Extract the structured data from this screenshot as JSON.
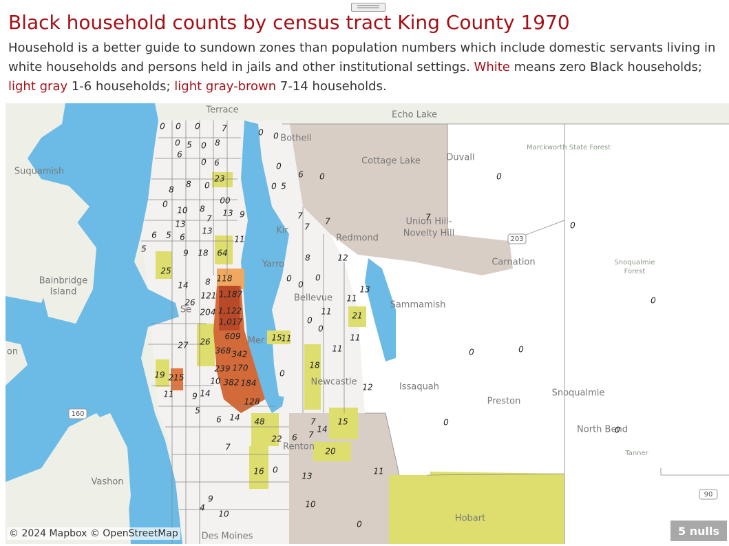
{
  "header": {
    "title": "Black household counts by census tract King County 1970",
    "description": [
      " Household is a better guide to sundown zones than population numbers which include domestic servants living in white households and persons held in jails and other institutional settings. ",
      "White",
      " means zero Black households; ",
      "light gray",
      " 1-6 households; ",
      "light gray-brown",
      " 7-14 households."
    ]
  },
  "map": {
    "place_labels": [
      "Terrace",
      "Echo Lake",
      "Suquamish",
      "Cottage Lake",
      "Duvall",
      "Marckworth State Forest",
      "Union Hill-",
      "Novelty Hill",
      "Redmond",
      "Kir",
      "Carnation",
      "Snoqualmie",
      "Forest",
      "Yarro",
      "Bainbridge",
      "Island",
      "Sammamish",
      "Bellevue",
      "Se",
      "Mer",
      "on",
      "Newcastle",
      "Issaquah",
      "Preston",
      "Snoqualmie",
      "North Bend",
      "Tanner",
      "Renton",
      "Vashon",
      "Hobart",
      "Des Moines",
      "Bothell"
    ],
    "road_shields": [
      "160",
      "203",
      "90"
    ],
    "tract_labels": [
      "0",
      "0",
      "0",
      "7",
      "0",
      "0",
      "0",
      "5",
      "0",
      "8",
      "6",
      "6",
      "0",
      "0",
      "6",
      "0",
      "23",
      "8",
      "8",
      "0",
      "5",
      "0",
      "0",
      "10",
      "8",
      "00",
      "7",
      "13",
      "9",
      "13",
      "6",
      "5",
      "6",
      "13",
      "11",
      "7",
      "7",
      "7",
      "7",
      "5",
      "9",
      "18",
      "64",
      "8",
      "12",
      "25",
      "14",
      "8",
      "118",
      "0",
      "0",
      "0",
      "121",
      "1,187",
      "13",
      "11",
      "26",
      "204",
      "1,122",
      "11",
      "21",
      "1,017",
      "0",
      "0",
      "609",
      "26",
      "27",
      "15",
      "11",
      "11",
      "368",
      "342",
      "11",
      "239",
      "170",
      "18",
      "0",
      "19",
      "215",
      "10",
      "382",
      "184",
      "12",
      "11",
      "9",
      "14",
      "128",
      "5",
      "6",
      "14",
      "48",
      "15",
      "7",
      "14",
      "7",
      "22",
      "6",
      "7",
      "20",
      "16",
      "0",
      "13",
      "11",
      "10",
      "10",
      "0",
      "0",
      "0",
      "0",
      "0",
      "0",
      "0",
      "0",
      "9",
      "4"
    ],
    "attribution": "© 2024 Mapbox © OpenStreetMap",
    "nulls_button": "5 nulls"
  }
}
